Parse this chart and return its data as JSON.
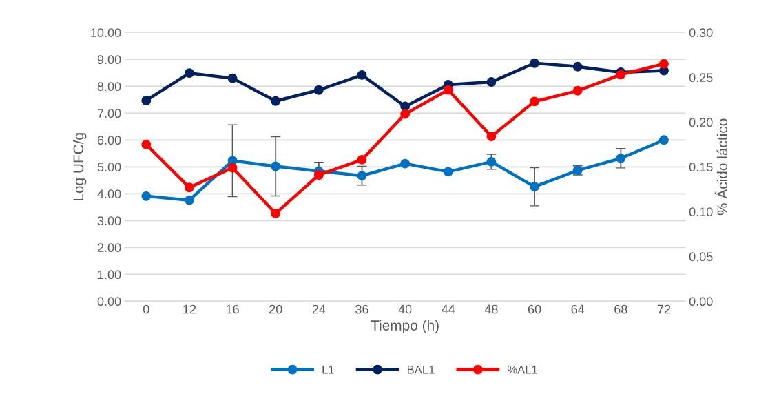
{
  "chart_data": {
    "type": "line",
    "xlabel": "Tiempo (h)",
    "ylabel": "Log UFC/g",
    "y2label": "% Ácido láctico",
    "categories": [
      "0",
      "12",
      "16",
      "20",
      "24",
      "36",
      "40",
      "44",
      "48",
      "60",
      "64",
      "68",
      "72"
    ],
    "series": [
      {
        "name": "L1",
        "color": "#0070c0",
        "values": [
          3.91,
          3.76,
          5.23,
          5.02,
          4.84,
          4.67,
          5.12,
          4.82,
          5.19,
          4.26,
          4.87,
          5.32,
          6.0
        ],
        "errors": [
          null,
          null,
          1.34,
          1.1,
          0.33,
          0.35,
          null,
          null,
          0.28,
          0.71,
          0.17,
          0.36,
          null
        ]
      },
      {
        "name": "BAL1",
        "color": "#002060",
        "values": [
          7.47,
          8.49,
          8.3,
          7.45,
          7.86,
          8.42,
          7.25,
          8.06,
          8.16,
          8.86,
          8.73,
          8.52,
          8.58
        ]
      },
      {
        "name": "%AL1",
        "color": "#ff0000",
        "axis": "y2",
        "values": [
          0.175,
          0.127,
          0.149,
          0.098,
          0.141,
          0.158,
          0.209,
          0.236,
          0.184,
          0.223,
          0.235,
          0.253,
          0.265
        ]
      }
    ],
    "ylim": [
      0,
      10
    ],
    "yticks": [
      {
        "value": 0,
        "label": "0.00"
      },
      {
        "value": 1,
        "label": "1.00"
      },
      {
        "value": 2,
        "label": "2.00"
      },
      {
        "value": 3,
        "label": "3.00"
      },
      {
        "value": 4,
        "label": "4.00"
      },
      {
        "value": 5,
        "label": "5.00"
      },
      {
        "value": 6,
        "label": "6.00"
      },
      {
        "value": 7,
        "label": "7.00"
      },
      {
        "value": 8,
        "label": "8.00"
      },
      {
        "value": 9,
        "label": "9.00"
      },
      {
        "value": 10,
        "label": "10.00"
      }
    ],
    "y2lim": [
      0,
      0.3
    ],
    "y2ticks": [
      {
        "value": 0,
        "label": "0.00"
      },
      {
        "value": 0.05,
        "label": "0.05"
      },
      {
        "value": 0.1,
        "label": "0.10"
      },
      {
        "value": 0.15,
        "label": "0.15"
      },
      {
        "value": 0.2,
        "label": "0.20"
      },
      {
        "value": 0.25,
        "label": "0.25"
      },
      {
        "value": 0.3,
        "label": "0.30"
      }
    ],
    "grid": "y",
    "legend": "bottom",
    "marker": "circle",
    "line_style": "solid"
  }
}
